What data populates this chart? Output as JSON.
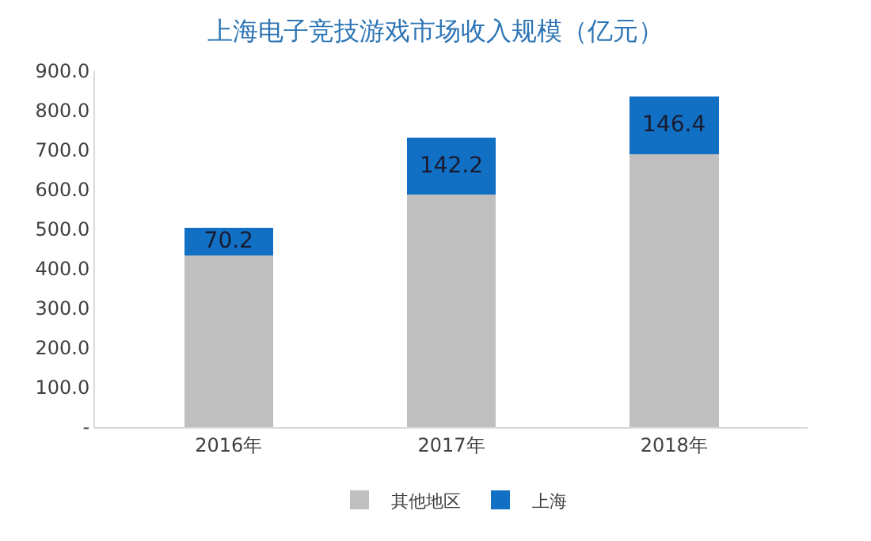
{
  "chart_data": {
    "type": "bar",
    "title": "上海电子竞技游戏市场收入规模（亿元）",
    "stacked": true,
    "categories": [
      "2016年",
      "2017年",
      "2018年"
    ],
    "series": [
      {
        "name": "其他地区",
        "color": "#bfbfbf",
        "values": [
          434,
          589,
          690
        ]
      },
      {
        "name": "上海",
        "color": "#1170c4",
        "values": [
          70.2,
          142.2,
          146.4
        ],
        "value_labels": [
          "70.2",
          "142.2",
          "146.4"
        ]
      }
    ],
    "ylim": [
      0,
      900
    ],
    "yticks": [
      {
        "value": 0,
        "label": "-"
      },
      {
        "value": 100,
        "label": "100.0"
      },
      {
        "value": 200,
        "label": "200.0"
      },
      {
        "value": 300,
        "label": "300.0"
      },
      {
        "value": 400,
        "label": "400.0"
      },
      {
        "value": 500,
        "label": "500.0"
      },
      {
        "value": 600,
        "label": "600.0"
      },
      {
        "value": 700,
        "label": "700.0"
      },
      {
        "value": 800,
        "label": "800.0"
      },
      {
        "value": 900,
        "label": "900.0"
      }
    ],
    "legend": "bottom"
  }
}
